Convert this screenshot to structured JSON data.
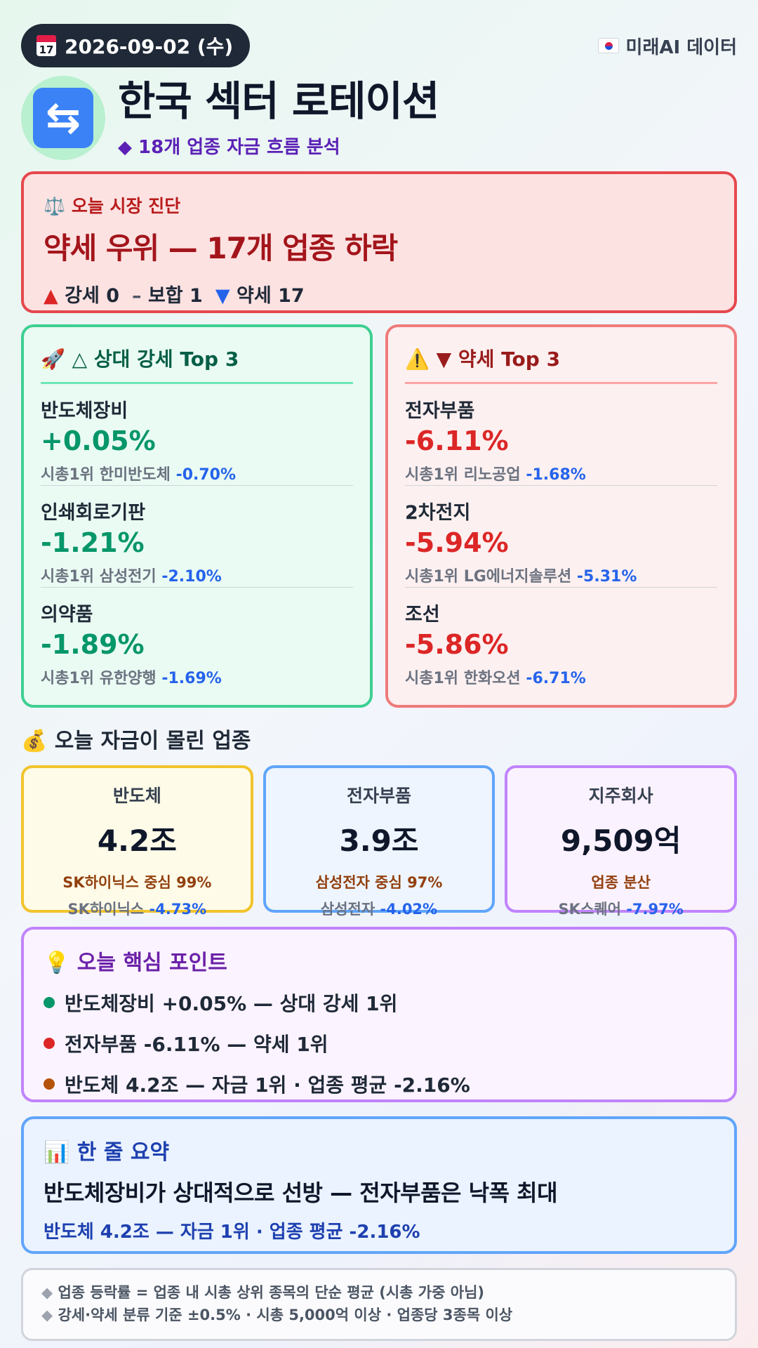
{
  "header": {
    "date": "2026-09-02 (수)",
    "calendar_icon_text": "17",
    "source": "미래AI 데이터",
    "title": "한국 섹터 로테이션",
    "subtitle": "◆ 18개 업종 자금 흐름 분석",
    "logo_glyph": "⇆"
  },
  "diagnosis": {
    "label": "⚖️ 오늘 시장 진단",
    "headline": "약세 우위 — 17개 업종 하락",
    "strong_label": "강세 0",
    "neutral_label": "보합 1",
    "weak_label": "약세 17"
  },
  "strong_top3": {
    "title": "🚀 △ 상대 강세 Top 3",
    "leader_prefix": "시총1위",
    "items": [
      {
        "name": "반도체장비",
        "pct": "+0.05%",
        "leader": "한미반도체",
        "leader_pct": "-0.70%"
      },
      {
        "name": "인쇄회로기판",
        "pct": "-1.21%",
        "leader": "삼성전기",
        "leader_pct": "-2.10%"
      },
      {
        "name": "의약품",
        "pct": "-1.89%",
        "leader": "유한양행",
        "leader_pct": "-1.69%"
      }
    ]
  },
  "weak_top3": {
    "title": "⚠️ ▼ 약세 Top 3",
    "leader_prefix": "시총1위",
    "items": [
      {
        "name": "전자부품",
        "pct": "-6.11%",
        "leader": "리노공업",
        "leader_pct": "-1.68%"
      },
      {
        "name": "2차전지",
        "pct": "-5.94%",
        "leader": "LG에너지솔루션",
        "leader_pct": "-5.31%"
      },
      {
        "name": "조선",
        "pct": "-5.86%",
        "leader": "한화오션",
        "leader_pct": "-6.71%"
      }
    ]
  },
  "money_flow": {
    "title": "💰 오늘 자금이 몰린 업종",
    "cards": [
      {
        "name": "반도체",
        "amount": "4.2조",
        "concentration": "SK하이닉스 중심 99%",
        "stock": "SK하이닉스",
        "stock_pct": "-4.73%"
      },
      {
        "name": "전자부품",
        "amount": "3.9조",
        "concentration": "삼성전자 중심 97%",
        "stock": "삼성전자",
        "stock_pct": "-4.02%"
      },
      {
        "name": "지주회사",
        "amount": "9,509억",
        "concentration": "업종 분산",
        "stock": "SK스퀘어",
        "stock_pct": "-7.97%"
      }
    ]
  },
  "key_points": {
    "title": "💡 오늘 핵심 포인트",
    "items": [
      {
        "text": "반도체장비 +0.05% — 상대 강세 1위",
        "color": "#059669"
      },
      {
        "text": "전자부품 -6.11% — 약세 1위",
        "color": "#dc2626"
      },
      {
        "text": "반도체 4.2조 — 자금 1위 · 업종 평균 -2.16%",
        "color": "#b45309"
      }
    ]
  },
  "summary": {
    "title": "📊 한 줄 요약",
    "main": "반도체장비가 상대적으로 선방 — 전자부품은 낙폭 최대",
    "sub": "반도체 4.2조 — 자금 1위 · 업종 평균 -2.16%"
  },
  "footnotes": [
    "업종 등락률 = 업종 내 시총 상위 종목의 단순 평균 (시총 가중 아님)",
    "강세·약세 분류 기준 ±0.5% · 시총 5,000억 이상 · 업종당 3종목 이상"
  ],
  "colors": {
    "strong": "#059669",
    "weak": "#dc2626",
    "leader_pct": "#2563eb",
    "diagnosis_border": "#e5484d"
  }
}
